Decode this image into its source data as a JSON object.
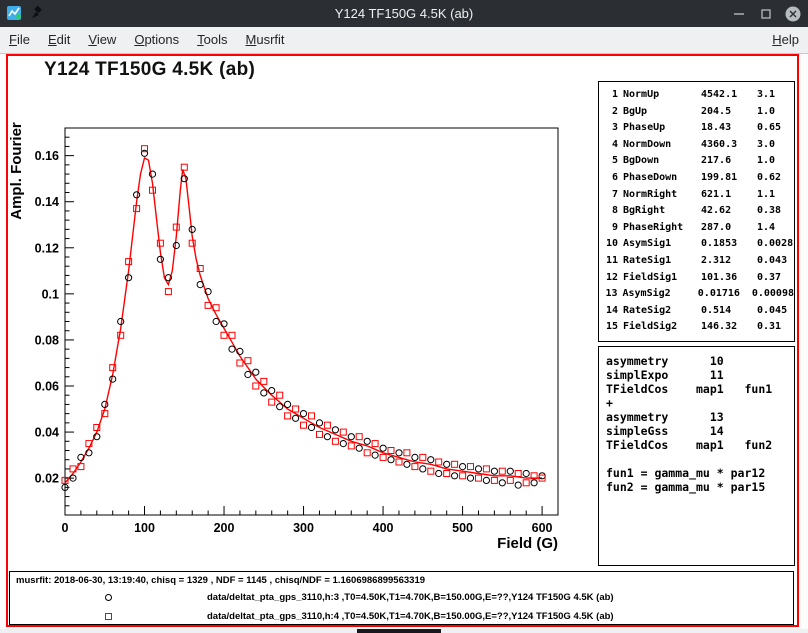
{
  "window": {
    "title": "Y124 TF150G 4.5K (ab)"
  },
  "menu": {
    "items": [
      "File",
      "Edit",
      "View",
      "Options",
      "Tools",
      "Musrfit"
    ],
    "help": "Help"
  },
  "params_pad": {
    "rows": [
      [
        "1",
        "NormUp",
        "4542.1",
        "3.1"
      ],
      [
        "2",
        "BgUp",
        "204.5",
        "1.0"
      ],
      [
        "3",
        "PhaseUp",
        "18.43",
        "0.65"
      ],
      [
        "4",
        "NormDown",
        "4360.3",
        "3.0"
      ],
      [
        "5",
        "BgDown",
        "217.6",
        "1.0"
      ],
      [
        "6",
        "PhaseDown",
        "199.81",
        "0.62"
      ],
      [
        "7",
        "NormRight",
        "621.1",
        "1.1"
      ],
      [
        "8",
        "BgRight",
        "42.62",
        "0.38"
      ],
      [
        "9",
        "PhaseRight",
        "287.0",
        "1.4"
      ],
      [
        "10",
        "AsymSig1",
        "0.1853",
        "0.0028"
      ],
      [
        "11",
        "RateSig1",
        "2.312",
        "0.043"
      ],
      [
        "12",
        "FieldSig1",
        "101.36",
        "0.37"
      ],
      [
        "13",
        "AsymSig2",
        "0.01716",
        "0.00098"
      ],
      [
        "14",
        "RateSig2",
        "0.514",
        "0.045"
      ],
      [
        "15",
        "FieldSig2",
        "146.32",
        "0.31"
      ]
    ]
  },
  "theory_pad": {
    "lines": [
      "asymmetry      10",
      "simplExpo      11",
      "TFieldCos    map1   fun1",
      "+",
      "asymmetry      13",
      "simpleGss      14",
      "TFieldCos    map1   fun2",
      "",
      "fun1 = gamma_mu * par12",
      "fun2 = gamma_mu * par15"
    ]
  },
  "stats_pad": {
    "info": "musrfit: 2018-06-30, 13:19:40, chisq = 1329 , NDF = 1145 , chisq/NDF = 1.1606986899563319",
    "legend": [
      {
        "marker": "circle",
        "color": "#000000",
        "label": "data/deltat_pta_gps_3110,h:3 ,T0=4.50K,T1=4.70K,B=150.00G,E=??,Y124 TF150G 4.5K (ab)"
      },
      {
        "marker": "square",
        "color": "#ff0000",
        "label": "data/deltat_pta_gps_3110,h:4 ,T0=4.50K,T1=4.70K,B=150.00G,E=??,Y124 TF150G 4.5K (ab)"
      }
    ]
  },
  "chart_data": {
    "type": "scatter",
    "title": "Y124 TF150G 4.5K (ab)",
    "xlabel": "Field (G)",
    "ylabel": "Ampl. Fourier",
    "xlim": [
      0,
      620
    ],
    "ylim": [
      0.004,
      0.172
    ],
    "xticks": [
      0,
      100,
      200,
      300,
      400,
      500,
      600
    ],
    "x_minor": 20,
    "yticks": [
      0.02,
      0.04,
      0.06,
      0.08,
      0.1,
      0.12,
      0.14,
      0.16
    ],
    "ytick_labels": [
      "0.02",
      "0.04",
      "0.06",
      "0.08",
      "0.1",
      "0.12",
      "0.14",
      "0.16"
    ],
    "y_minor": 0.004,
    "fit_color": "#ff0000",
    "fit_curve": {
      "x": [
        0,
        10,
        20,
        30,
        40,
        50,
        60,
        70,
        80,
        85,
        90,
        95,
        100,
        105,
        110,
        115,
        120,
        125,
        130,
        135,
        140,
        145,
        148,
        152,
        156,
        160,
        165,
        170,
        180,
        190,
        200,
        210,
        220,
        230,
        240,
        250,
        260,
        270,
        280,
        290,
        300,
        320,
        340,
        360,
        380,
        400,
        420,
        440,
        460,
        480,
        500,
        520,
        540,
        560,
        580,
        600
      ],
      "y": [
        0.018,
        0.022,
        0.027,
        0.033,
        0.04,
        0.05,
        0.065,
        0.085,
        0.11,
        0.125,
        0.14,
        0.152,
        0.159,
        0.158,
        0.148,
        0.133,
        0.118,
        0.107,
        0.104,
        0.11,
        0.125,
        0.145,
        0.154,
        0.15,
        0.138,
        0.125,
        0.115,
        0.108,
        0.098,
        0.091,
        0.085,
        0.079,
        0.073,
        0.068,
        0.063,
        0.0595,
        0.056,
        0.053,
        0.05,
        0.048,
        0.046,
        0.042,
        0.039,
        0.036,
        0.034,
        0.031,
        0.029,
        0.027,
        0.026,
        0.024,
        0.023,
        0.022,
        0.021,
        0.021,
        0.02,
        0.02
      ]
    },
    "series": [
      {
        "name": "data/deltat_pta_gps_3110,h:3",
        "marker": "circle",
        "color": "#000000",
        "x_start": 0,
        "x_step": 10,
        "y": [
          0.016,
          0.02,
          0.029,
          0.031,
          0.038,
          0.052,
          0.063,
          0.088,
          0.107,
          0.143,
          0.161,
          0.152,
          0.115,
          0.107,
          0.121,
          0.15,
          0.128,
          0.104,
          0.101,
          0.088,
          0.087,
          0.076,
          0.075,
          0.065,
          0.066,
          0.057,
          0.058,
          0.051,
          0.052,
          0.046,
          0.048,
          0.042,
          0.044,
          0.038,
          0.041,
          0.035,
          0.038,
          0.033,
          0.036,
          0.03,
          0.033,
          0.028,
          0.031,
          0.026,
          0.029,
          0.024,
          0.028,
          0.022,
          0.026,
          0.021,
          0.025,
          0.02,
          0.024,
          0.019,
          0.023,
          0.018,
          0.023,
          0.017,
          0.022,
          0.018,
          0.021
        ]
      },
      {
        "name": "data/deltat_pta_gps_3110,h:4",
        "marker": "square",
        "color": "#ff0000",
        "x_start": 0,
        "x_step": 10,
        "y": [
          0.019,
          0.024,
          0.025,
          0.035,
          0.042,
          0.048,
          0.068,
          0.082,
          0.114,
          0.137,
          0.163,
          0.145,
          0.122,
          0.101,
          0.129,
          0.155,
          0.122,
          0.111,
          0.095,
          0.094,
          0.082,
          0.082,
          0.07,
          0.071,
          0.06,
          0.062,
          0.053,
          0.056,
          0.047,
          0.05,
          0.043,
          0.047,
          0.039,
          0.043,
          0.036,
          0.04,
          0.034,
          0.038,
          0.031,
          0.035,
          0.029,
          0.032,
          0.027,
          0.031,
          0.025,
          0.029,
          0.023,
          0.027,
          0.022,
          0.026,
          0.021,
          0.025,
          0.02,
          0.024,
          0.019,
          0.023,
          0.019,
          0.022,
          0.018,
          0.021,
          0.02
        ]
      }
    ]
  }
}
